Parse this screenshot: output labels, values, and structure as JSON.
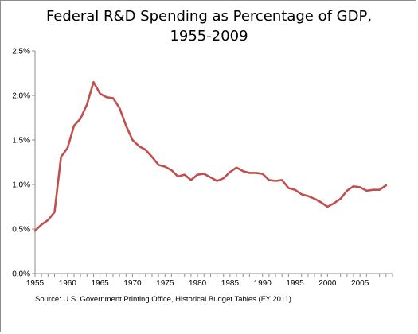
{
  "chart_data": {
    "type": "line",
    "title_line1": "Federal R&D Spending as Percentage of GDP,",
    "title_line2": "1955-2009",
    "xlabel": "",
    "ylabel": "",
    "source": "Source: U.S. Government Printing Office, Historical Budget Tables (FY 2011).",
    "xlim": [
      1955,
      2010
    ],
    "ylim": [
      0,
      2.5
    ],
    "y_ticks": [
      "0.0%",
      "0.5%",
      "1.0%",
      "1.5%",
      "2.0%",
      "2.5%"
    ],
    "x_ticks": [
      "1955",
      "1960",
      "1965",
      "1970",
      "1975",
      "1980",
      "1985",
      "1990",
      "1995",
      "2000",
      "2005"
    ],
    "grid": false,
    "legend": "none",
    "line_color": "#c0504d",
    "series": [
      {
        "x": [
          1955,
          1956,
          1957,
          1958,
          1959,
          1960,
          1961,
          1962,
          1963,
          1964,
          1965,
          1966,
          1967,
          1968,
          1969,
          1970,
          1971,
          1972,
          1973,
          1974,
          1975,
          1976,
          1977,
          1978,
          1979,
          1980,
          1981,
          1982,
          1983,
          1984,
          1985,
          1986,
          1987,
          1988,
          1989,
          1990,
          1991,
          1992,
          1993,
          1994,
          1995,
          1996,
          1997,
          1998,
          1999,
          2000,
          2001,
          2002,
          2003,
          2004,
          2005,
          2006,
          2007,
          2008,
          2009
        ],
        "values": [
          0.48,
          0.55,
          0.6,
          0.69,
          1.31,
          1.41,
          1.66,
          1.74,
          1.9,
          2.15,
          2.02,
          1.98,
          1.97,
          1.86,
          1.66,
          1.5,
          1.43,
          1.39,
          1.31,
          1.22,
          1.2,
          1.16,
          1.09,
          1.11,
          1.05,
          1.11,
          1.12,
          1.08,
          1.04,
          1.07,
          1.14,
          1.19,
          1.15,
          1.13,
          1.13,
          1.12,
          1.05,
          1.04,
          1.05,
          0.96,
          0.94,
          0.89,
          0.87,
          0.84,
          0.8,
          0.75,
          0.79,
          0.84,
          0.93,
          0.98,
          0.97,
          0.93,
          0.94,
          0.94,
          0.99
        ]
      }
    ]
  }
}
